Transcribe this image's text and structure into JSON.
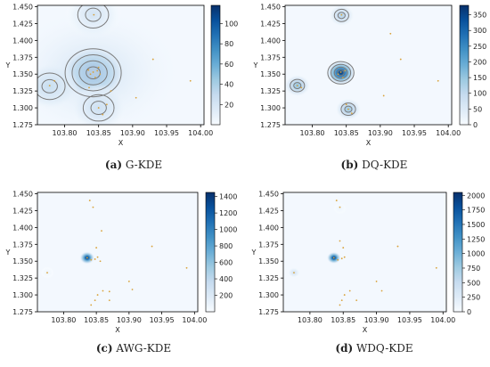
{
  "chart_data": [
    {
      "type": "heatmap",
      "title": "",
      "caption_letter": "(a)",
      "caption_text": "G-KDE",
      "xlabel": "X",
      "ylabel": "Y",
      "xlim": [
        103.76,
        104.005
      ],
      "ylim": [
        1.275,
        1.452
      ],
      "xticks": [
        "103.80",
        "103.85",
        "103.90",
        "103.95",
        "104.00"
      ],
      "yticks": [
        "1.275",
        "1.300",
        "1.325",
        "1.350",
        "1.375",
        "1.400",
        "1.425",
        "1.450"
      ],
      "colorbar": {
        "min": 0,
        "max": 118,
        "ticks": [
          "20",
          "40",
          "60",
          "80",
          "100"
        ]
      },
      "contours": true,
      "colormap": "Blues",
      "peaks": [
        {
          "x": 103.842,
          "y": 1.352,
          "level": 115
        },
        {
          "x": 103.778,
          "y": 1.332,
          "level": 35
        },
        {
          "x": 103.842,
          "y": 1.438,
          "level": 22
        },
        {
          "x": 103.85,
          "y": 1.3,
          "level": 30
        }
      ],
      "points": [
        [
          103.842,
          1.353
        ],
        [
          103.838,
          1.35
        ],
        [
          103.848,
          1.355
        ],
        [
          103.852,
          1.35
        ],
        [
          103.845,
          1.345
        ],
        [
          103.835,
          1.356
        ],
        [
          103.85,
          1.36
        ],
        [
          103.778,
          1.333
        ],
        [
          103.785,
          1.34
        ],
        [
          103.843,
          1.438
        ],
        [
          103.85,
          1.3
        ],
        [
          103.856,
          1.29
        ],
        [
          103.862,
          1.305
        ],
        [
          103.905,
          1.315
        ],
        [
          103.93,
          1.372
        ],
        [
          103.985,
          1.34
        ],
        [
          103.836,
          1.33
        ],
        [
          103.868,
          1.325
        ]
      ]
    },
    {
      "type": "heatmap",
      "title": "",
      "caption_letter": "(b)",
      "caption_text": "DQ-KDE",
      "xlabel": "X",
      "ylabel": "Y",
      "xlim": [
        103.76,
        104.005
      ],
      "ylim": [
        1.275,
        1.452
      ],
      "xticks": [
        "103.80",
        "103.85",
        "103.90",
        "103.95",
        "104.00"
      ],
      "yticks": [
        "1.275",
        "1.300",
        "1.325",
        "1.350",
        "1.375",
        "1.400",
        "1.425",
        "1.450"
      ],
      "colorbar": {
        "min": 0,
        "max": 380,
        "ticks": [
          "0",
          "50",
          "100",
          "150",
          "200",
          "250",
          "300",
          "350"
        ]
      },
      "contours": true,
      "colormap": "Blues",
      "peaks": [
        {
          "x": 103.842,
          "y": 1.352,
          "level": 370
        },
        {
          "x": 103.778,
          "y": 1.333,
          "level": 160
        },
        {
          "x": 103.843,
          "y": 1.437,
          "level": 120
        },
        {
          "x": 103.853,
          "y": 1.298,
          "level": 150
        }
      ],
      "points": [
        [
          103.842,
          1.353
        ],
        [
          103.838,
          1.35
        ],
        [
          103.848,
          1.355
        ],
        [
          103.845,
          1.345
        ],
        [
          103.778,
          1.333
        ],
        [
          103.784,
          1.33
        ],
        [
          103.843,
          1.438
        ],
        [
          103.853,
          1.298
        ],
        [
          103.858,
          1.292
        ],
        [
          103.85,
          1.305
        ],
        [
          103.905,
          1.318
        ],
        [
          103.93,
          1.372
        ],
        [
          103.985,
          1.34
        ],
        [
          103.915,
          1.41
        ]
      ]
    },
    {
      "type": "heatmap",
      "title": "",
      "caption_letter": "(c)",
      "caption_text": "AWG-KDE",
      "xlabel": "X",
      "ylabel": "Y",
      "xlim": [
        103.76,
        104.005
      ],
      "ylim": [
        1.275,
        1.452
      ],
      "xticks": [
        "103.80",
        "103.85",
        "103.90",
        "103.95",
        "104.00"
      ],
      "yticks": [
        "1.275",
        "1.300",
        "1.325",
        "1.350",
        "1.375",
        "1.400",
        "1.425",
        "1.450"
      ],
      "colorbar": {
        "min": 0,
        "max": 1450,
        "ticks": [
          "200",
          "400",
          "600",
          "800",
          "1000",
          "1200",
          "1400"
        ]
      },
      "contours": false,
      "colormap": "Blues",
      "peaks": [
        {
          "x": 103.836,
          "y": 1.355,
          "level": 1420
        },
        {
          "x": 103.775,
          "y": 1.333,
          "level": 60
        }
      ],
      "points": [
        [
          103.836,
          1.355
        ],
        [
          103.842,
          1.352
        ],
        [
          103.848,
          1.353
        ],
        [
          103.852,
          1.356
        ],
        [
          103.856,
          1.35
        ],
        [
          103.845,
          1.43
        ],
        [
          103.84,
          1.44
        ],
        [
          103.85,
          1.37
        ],
        [
          103.858,
          1.395
        ],
        [
          103.852,
          1.3
        ],
        [
          103.848,
          1.292
        ],
        [
          103.86,
          1.306
        ],
        [
          103.842,
          1.285
        ],
        [
          103.87,
          1.292
        ],
        [
          103.9,
          1.32
        ],
        [
          103.905,
          1.308
        ],
        [
          103.935,
          1.372
        ],
        [
          103.988,
          1.34
        ],
        [
          103.775,
          1.333
        ],
        [
          103.87,
          1.305
        ]
      ]
    },
    {
      "type": "heatmap",
      "title": "",
      "caption_letter": "(d)",
      "caption_text": "WDQ-KDE",
      "xlabel": "X",
      "ylabel": "Y",
      "xlim": [
        103.76,
        104.005
      ],
      "ylim": [
        1.275,
        1.452
      ],
      "xticks": [
        "103.80",
        "103.85",
        "103.90",
        "103.95",
        "104.00"
      ],
      "yticks": [
        "1.275",
        "1.300",
        "1.325",
        "1.350",
        "1.375",
        "1.400",
        "1.425",
        "1.450"
      ],
      "colorbar": {
        "min": 0,
        "max": 2050,
        "ticks": [
          "0",
          "250",
          "500",
          "750",
          "1000",
          "1250",
          "1500",
          "1750",
          "2000"
        ]
      },
      "contours": false,
      "colormap": "Blues",
      "peaks": [
        {
          "x": 103.836,
          "y": 1.355,
          "level": 2000
        },
        {
          "x": 103.776,
          "y": 1.333,
          "level": 380
        },
        {
          "x": 103.845,
          "y": 1.428,
          "level": 90
        }
      ],
      "points": [
        [
          103.836,
          1.355
        ],
        [
          103.842,
          1.352
        ],
        [
          103.848,
          1.354
        ],
        [
          103.852,
          1.356
        ],
        [
          103.845,
          1.43
        ],
        [
          103.84,
          1.44
        ],
        [
          103.85,
          1.37
        ],
        [
          103.852,
          1.3
        ],
        [
          103.848,
          1.292
        ],
        [
          103.86,
          1.306
        ],
        [
          103.845,
          1.285
        ],
        [
          103.87,
          1.292
        ],
        [
          103.9,
          1.32
        ],
        [
          103.908,
          1.306
        ],
        [
          103.932,
          1.372
        ],
        [
          103.99,
          1.34
        ],
        [
          103.776,
          1.333
        ],
        [
          103.845,
          1.38
        ]
      ]
    }
  ]
}
